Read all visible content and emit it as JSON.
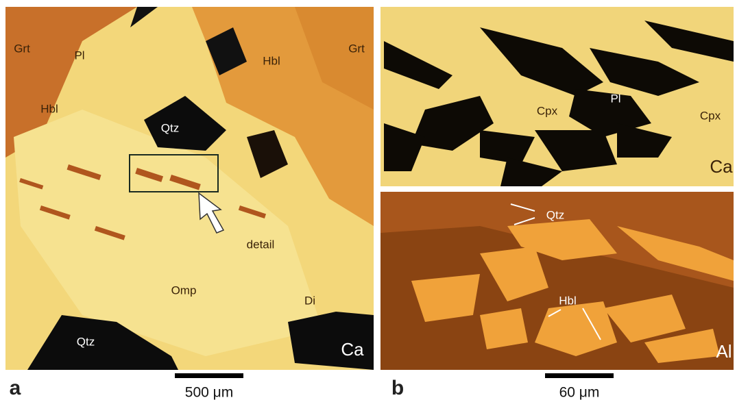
{
  "panel_a": {
    "letter": "a",
    "scale_bar": "500 μm",
    "labels": [
      "Grt",
      "Pl",
      "Hbl",
      "Hbl",
      "Grt",
      "Qtz",
      "detail",
      "Omp",
      "Di",
      "Qtz",
      "Ca"
    ]
  },
  "panel_b": {
    "letter": "b",
    "scale_bar": "60 μm",
    "top_labels": [
      "Cpx",
      "Pl",
      "Cpx",
      "Ca"
    ],
    "bottom_labels": [
      "Qtz",
      "Hbl",
      "Al"
    ]
  }
}
